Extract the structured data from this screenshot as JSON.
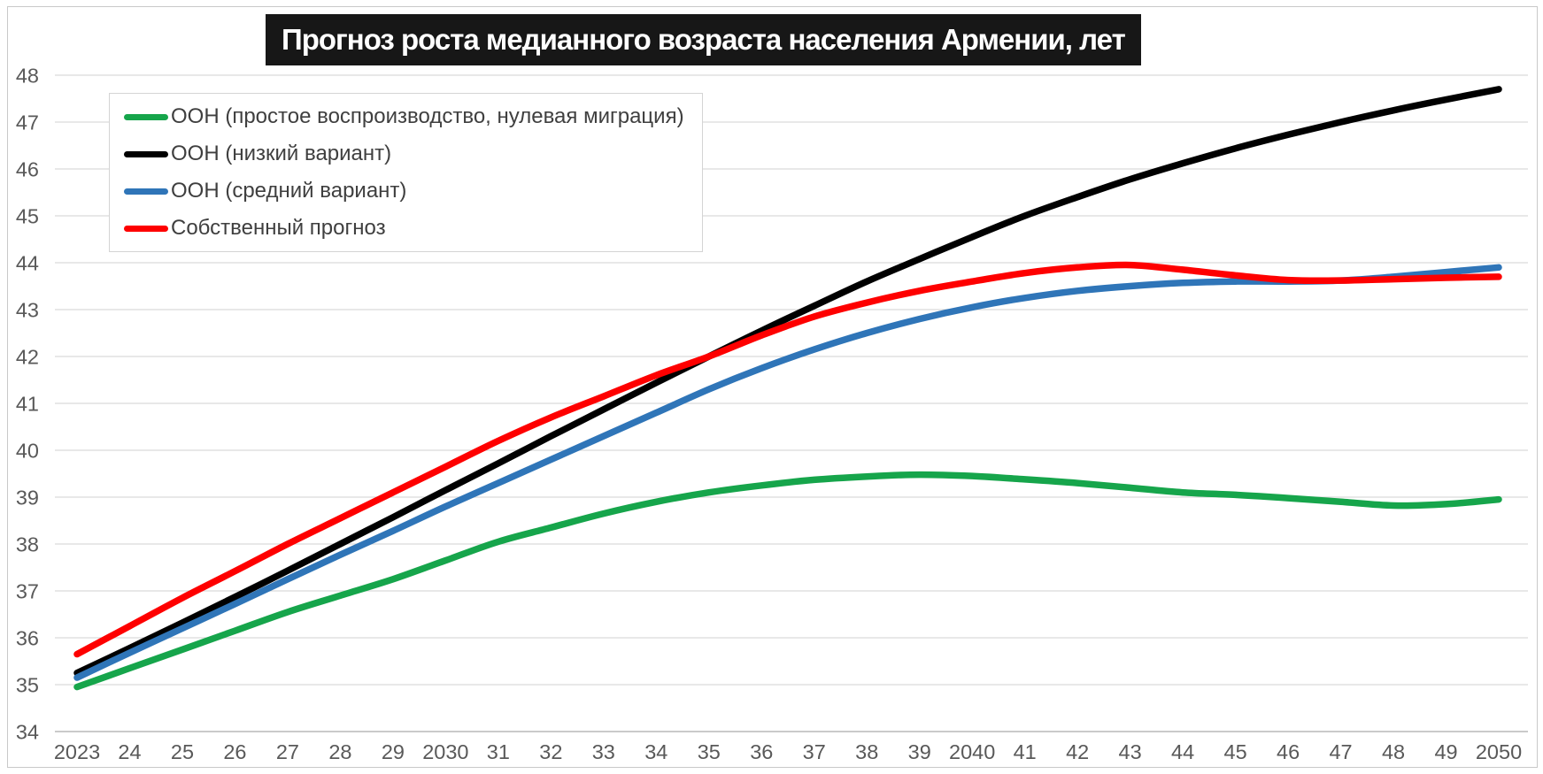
{
  "title": "Прогноз роста медианного возраста населения Армении, лет",
  "colors": {
    "title_background": "#171717",
    "title_text": "#ffffff",
    "gridline": "#d9d9d9",
    "axis_line": "#b9b9b9",
    "tick_text": "#595959",
    "legend_text": "#3f3f3f",
    "legend_border": "#d4d4d4",
    "outer_border": "#c9c9c9",
    "series_green": "#16a54b",
    "series_black": "#000000",
    "series_blue": "#2f75b8",
    "series_red": "#fe0000"
  },
  "chart_data": {
    "type": "line",
    "title": "Прогноз роста медианного возраста населения Армении, лет",
    "xlabel": "",
    "ylabel": "",
    "x": [
      2023,
      2024,
      2025,
      2026,
      2027,
      2028,
      2029,
      2030,
      2031,
      2032,
      2033,
      2034,
      2035,
      2036,
      2037,
      2038,
      2039,
      2040,
      2041,
      2042,
      2043,
      2044,
      2045,
      2046,
      2047,
      2048,
      2049,
      2050
    ],
    "x_tick_labels": [
      "2023",
      "24",
      "25",
      "26",
      "27",
      "28",
      "29",
      "2030",
      "31",
      "32",
      "33",
      "34",
      "35",
      "36",
      "37",
      "38",
      "39",
      "2040",
      "41",
      "42",
      "43",
      "44",
      "45",
      "46",
      "47",
      "48",
      "49",
      "2050"
    ],
    "yticks": [
      34,
      35,
      36,
      37,
      38,
      39,
      40,
      41,
      42,
      43,
      44,
      45,
      46,
      47,
      48
    ],
    "ylim": [
      34,
      48
    ],
    "grid": true,
    "legend_position": "top-left",
    "series": [
      {
        "id": "un-zero-migration",
        "name": "ООН (простое воспроизводство, нулевая миграция)",
        "color": "#16a54b",
        "values": [
          34.95,
          35.35,
          35.75,
          36.15,
          36.55,
          36.9,
          37.25,
          37.65,
          38.05,
          38.35,
          38.65,
          38.9,
          39.1,
          39.25,
          39.37,
          39.44,
          39.48,
          39.45,
          39.38,
          39.3,
          39.2,
          39.1,
          39.05,
          38.98,
          38.9,
          38.82,
          38.85,
          38.95
        ]
      },
      {
        "id": "un-low-variant",
        "name": "ООН (низкий вариант)",
        "color": "#000000",
        "values": [
          35.25,
          35.78,
          36.32,
          36.87,
          37.43,
          38.0,
          38.57,
          39.15,
          39.72,
          40.3,
          40.87,
          41.44,
          42.0,
          42.55,
          43.08,
          43.6,
          44.08,
          44.55,
          45.0,
          45.4,
          45.78,
          46.12,
          46.44,
          46.73,
          47.0,
          47.25,
          47.48,
          47.7
        ]
      },
      {
        "id": "un-medium-variant",
        "name": "ООН (средний вариант)",
        "color": "#2f75b8",
        "values": [
          35.15,
          35.68,
          36.2,
          36.72,
          37.25,
          37.77,
          38.28,
          38.8,
          39.3,
          39.8,
          40.3,
          40.8,
          41.3,
          41.75,
          42.15,
          42.5,
          42.8,
          43.05,
          43.25,
          43.4,
          43.5,
          43.57,
          43.6,
          43.6,
          43.62,
          43.7,
          43.8,
          43.9
        ]
      },
      {
        "id": "own-forecast",
        "name": "Собственный прогноз",
        "color": "#fe0000",
        "values": [
          35.65,
          36.25,
          36.85,
          37.42,
          38.0,
          38.55,
          39.1,
          39.65,
          40.2,
          40.7,
          41.15,
          41.6,
          42.0,
          42.45,
          42.85,
          43.15,
          43.4,
          43.6,
          43.78,
          43.9,
          43.95,
          43.85,
          43.73,
          43.63,
          43.62,
          43.65,
          43.68,
          43.7
        ]
      }
    ]
  }
}
